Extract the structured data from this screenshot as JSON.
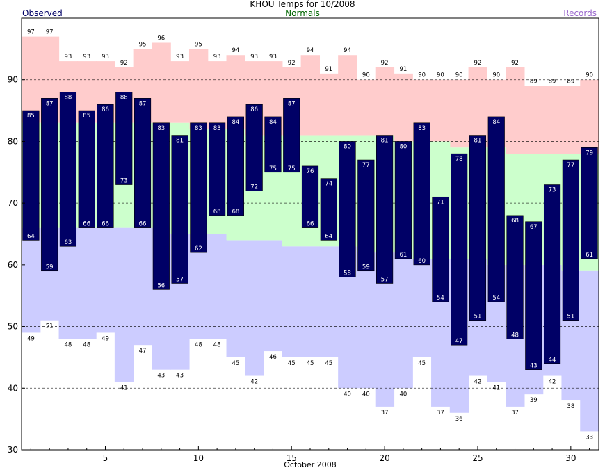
{
  "chart_data": {
    "type": "bar",
    "title": "KHOU Temps for 10/2008",
    "xlabel": "October 2008",
    "ylabel": "",
    "ylim": [
      30,
      100
    ],
    "xlim": [
      0.5,
      31.5
    ],
    "legend": {
      "observed": "Observed",
      "normals": "Normals",
      "records": "Records"
    },
    "colors": {
      "observed": "#000066",
      "normals_fill": "#ccffcc",
      "normals_label": "#006600",
      "record_high_fill": "#ffcccc",
      "record_low_fill": "#ccccff",
      "records_label": "#9966cc"
    },
    "x_ticks": [
      5,
      10,
      15,
      20,
      25,
      30
    ],
    "y_ticks": [
      30,
      40,
      50,
      60,
      70,
      80,
      90
    ],
    "grid_lines": [
      40,
      50,
      70,
      80,
      90
    ],
    "days": [
      1,
      2,
      3,
      4,
      5,
      6,
      7,
      8,
      9,
      10,
      11,
      12,
      13,
      14,
      15,
      16,
      17,
      18,
      19,
      20,
      21,
      22,
      23,
      24,
      25,
      26,
      27,
      28,
      29,
      30,
      31
    ],
    "series": [
      {
        "name": "Observed High",
        "values": [
          85,
          87,
          88,
          85,
          86,
          88,
          87,
          83,
          81,
          83,
          83,
          84,
          86,
          84,
          87,
          76,
          74,
          80,
          77,
          81,
          80,
          83,
          71,
          78,
          81,
          84,
          68,
          67,
          73,
          77,
          79
        ]
      },
      {
        "name": "Observed Low",
        "values": [
          64,
          59,
          63,
          66,
          66,
          73,
          66,
          56,
          57,
          62,
          68,
          68,
          72,
          75,
          75,
          66,
          64,
          58,
          59,
          57,
          61,
          60,
          54,
          47,
          51,
          54,
          48,
          43,
          44,
          51,
          61
        ]
      },
      {
        "name": "Record High",
        "values": [
          97,
          97,
          93,
          93,
          93,
          92,
          95,
          96,
          93,
          95,
          93,
          94,
          93,
          93,
          92,
          94,
          91,
          94,
          90,
          92,
          91,
          90,
          90,
          90,
          92,
          90,
          92,
          89,
          89,
          89,
          90
        ]
      },
      {
        "name": "Record Low",
        "values": [
          49,
          51,
          48,
          48,
          49,
          41,
          47,
          43,
          43,
          48,
          48,
          45,
          42,
          46,
          45,
          45,
          45,
          40,
          40,
          37,
          40,
          45,
          37,
          36,
          42,
          41,
          37,
          39,
          42,
          38,
          33
        ]
      },
      {
        "name": "Normal High",
        "values": [
          83,
          83,
          83,
          83,
          83,
          83,
          83,
          83,
          83,
          82,
          82,
          82,
          81,
          81,
          81,
          81,
          81,
          81,
          81,
          81,
          80,
          80,
          80,
          79,
          79,
          79,
          78,
          78,
          78,
          78,
          78
        ]
      },
      {
        "name": "Normal Low",
        "values": [
          66,
          66,
          66,
          66,
          66,
          66,
          66,
          66,
          65,
          65,
          65,
          64,
          64,
          64,
          63,
          63,
          63,
          63,
          62,
          62,
          62,
          61,
          61,
          61,
          61,
          60,
          60,
          60,
          60,
          59,
          59
        ]
      }
    ]
  }
}
